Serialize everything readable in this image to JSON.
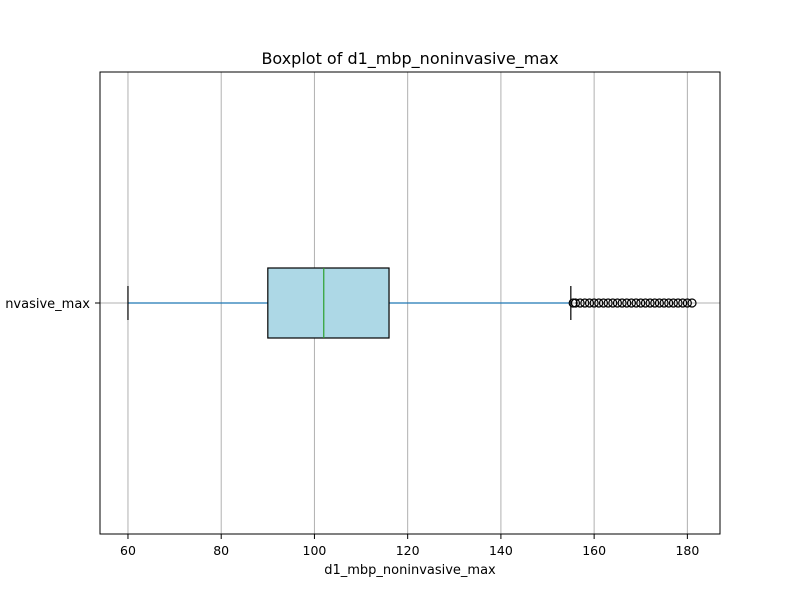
{
  "chart_data": {
    "type": "boxplot",
    "orientation": "horizontal",
    "title": "Boxplot of d1_mbp_noninvasive_max",
    "xlabel": "d1_mbp_noninvasive_max",
    "ylabel": "",
    "category_label_visible": "nvasive_max",
    "xlim": [
      54,
      187
    ],
    "x_ticks": [
      60,
      80,
      100,
      120,
      140,
      160,
      180
    ],
    "x_tick_labels": [
      "60",
      "80",
      "100",
      "120",
      "140",
      "160",
      "180"
    ],
    "grid": {
      "vertical": true,
      "horizontal": true
    },
    "box": {
      "whisker_low": 60,
      "q1": 90,
      "median": 102,
      "q3": 116,
      "whisker_high": 155,
      "outliers": [
        155.5,
        156,
        157,
        158,
        159,
        160,
        161,
        162,
        163,
        164,
        165,
        166,
        167,
        168,
        169,
        170,
        171,
        172,
        173,
        174,
        175,
        176,
        177,
        178,
        179,
        180,
        181
      ]
    },
    "colors": {
      "box_fill": "#add8e6",
      "median": "#2ca02c",
      "whisker": "#1f77b4",
      "cap": "#000000",
      "grid": "#b0b0b0",
      "frame": "#000000"
    }
  }
}
